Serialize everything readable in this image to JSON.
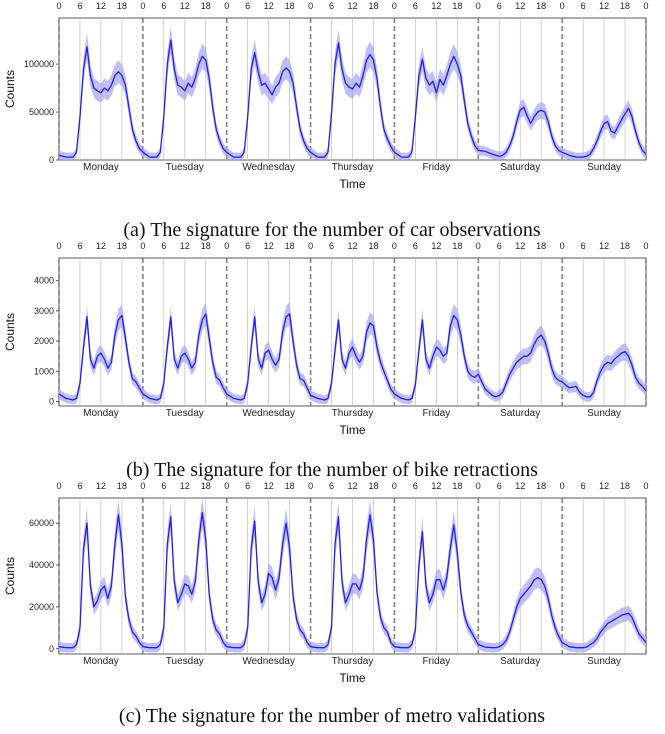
{
  "colors": {
    "line": "#1f1fe6",
    "band": "#a9a9f2",
    "grid": "#bdbdbd",
    "boundary": "#808080"
  },
  "days": [
    "Monday",
    "Tuesday",
    "Wednesday",
    "Thursday",
    "Friday",
    "Saturday",
    "Sunday"
  ],
  "top_hours": [
    "0",
    "6",
    "12",
    "18"
  ],
  "end_hour": "0",
  "xlabel": "Time",
  "ylabel": "Counts",
  "chart_data": [
    {
      "type": "line",
      "caption": "(a) The signature for the number of car observations",
      "xlabel": "Time",
      "ylabel": "Counts",
      "ylim": [
        0,
        148000
      ],
      "yticks": [
        0,
        50000,
        100000
      ],
      "ytick_labels": [
        "0",
        "50000",
        "100000"
      ],
      "x_unit": "hour of week (0–168)",
      "series": [
        {
          "x": [
            0,
            2,
            4,
            5,
            6,
            7,
            8,
            9,
            10,
            11,
            12,
            13,
            14,
            15,
            16,
            17,
            18,
            19,
            20,
            21,
            22,
            23,
            24
          ],
          "weekday_profiles": [
            [
              5000,
              3000,
              3000,
              8000,
              45000,
              95000,
              118000,
              88000,
              75000,
              72000,
              70000,
              75000,
              72000,
              78000,
              88000,
              92000,
              88000,
              78000,
              55000,
              32000,
              20000,
              12000,
              8000
            ],
            [
              5000,
              3000,
              3000,
              8000,
              45000,
              100000,
              125000,
              95000,
              78000,
              76000,
              72000,
              80000,
              76000,
              85000,
              100000,
              108000,
              104000,
              85000,
              55000,
              32000,
              20000,
              12000,
              8000
            ],
            [
              5000,
              3000,
              3000,
              8000,
              45000,
              95000,
              112000,
              92000,
              78000,
              80000,
              74000,
              68000,
              76000,
              80000,
              92000,
              96000,
              92000,
              80000,
              55000,
              32000,
              20000,
              12000,
              8000
            ],
            [
              5000,
              3000,
              3000,
              8000,
              48000,
              100000,
              122000,
              95000,
              80000,
              76000,
              74000,
              80000,
              76000,
              88000,
              104000,
              110000,
              104000,
              85000,
              55000,
              32000,
              22000,
              14000,
              8000
            ],
            [
              5000,
              3000,
              3000,
              8000,
              45000,
              88000,
              105000,
              85000,
              78000,
              82000,
              70000,
              84000,
              78000,
              88000,
              100000,
              108000,
              100000,
              88000,
              62000,
              38000,
              25000,
              15000,
              10000
            ],
            [
              12000,
              9000,
              6000,
              5000,
              4000,
              5000,
              8000,
              15000,
              25000,
              40000,
              52000,
              55000,
              46000,
              38000,
              45000,
              50000,
              52000,
              50000,
              40000,
              25000,
              15000,
              10000,
              8000
            ],
            [
              8000,
              5000,
              3000,
              3000,
              3000,
              4000,
              6000,
              12000,
              20000,
              30000,
              38000,
              40000,
              30000,
              28000,
              35000,
              42000,
              48000,
              54000,
              45000,
              30000,
              18000,
              10000,
              6000
            ]
          ]
        }
      ]
    },
    {
      "type": "line",
      "caption": "(b) The signature for the number of bike retractions",
      "xlabel": "Time",
      "ylabel": "Counts",
      "ylim": [
        -150,
        4750
      ],
      "yticks": [
        0,
        1000,
        2000,
        3000,
        4000
      ],
      "ytick_labels": [
        "0",
        "1000",
        "2000",
        "3000",
        "4000"
      ],
      "x_unit": "hour of week (0–168)",
      "series": [
        {
          "x": [
            0,
            2,
            4,
            5,
            6,
            7,
            8,
            9,
            10,
            11,
            12,
            13,
            14,
            15,
            16,
            17,
            18,
            19,
            20,
            21,
            22,
            23,
            24
          ],
          "weekday_profiles": [
            [
              250,
              100,
              50,
              100,
              600,
              1800,
              2800,
              1400,
              1100,
              1500,
              1600,
              1400,
              1100,
              1300,
              2200,
              2700,
              2850,
              2100,
              1300,
              750,
              650,
              450,
              250
            ],
            [
              250,
              100,
              50,
              100,
              600,
              1800,
              2800,
              1400,
              1100,
              1500,
              1600,
              1400,
              1100,
              1300,
              2200,
              2700,
              2900,
              2100,
              1300,
              800,
              700,
              450,
              250
            ],
            [
              200,
              100,
              50,
              100,
              600,
              1800,
              2800,
              1400,
              1100,
              1600,
              1700,
              1400,
              1200,
              1400,
              2300,
              2800,
              2900,
              2000,
              1200,
              750,
              700,
              450,
              200
            ],
            [
              200,
              100,
              50,
              100,
              600,
              1700,
              2700,
              1400,
              1100,
              1600,
              1800,
              1500,
              1300,
              1500,
              2300,
              2600,
              2500,
              1800,
              1300,
              1000,
              700,
              400,
              250
            ],
            [
              250,
              100,
              50,
              100,
              550,
              1700,
              2700,
              1400,
              1100,
              1500,
              1800,
              1700,
              1500,
              1600,
              2500,
              2850,
              2700,
              2200,
              1500,
              1000,
              850,
              800,
              900
            ],
            [
              750,
              400,
              200,
              150,
              200,
              300,
              600,
              900,
              1100,
              1300,
              1400,
              1500,
              1500,
              1600,
              1900,
              2100,
              2200,
              2000,
              1600,
              1100,
              800,
              700,
              650
            ],
            [
              700,
              450,
              500,
              300,
              200,
              150,
              150,
              300,
              700,
              1000,
              1200,
              1300,
              1250,
              1400,
              1500,
              1600,
              1650,
              1500,
              1200,
              800,
              600,
              500,
              350
            ]
          ]
        }
      ]
    },
    {
      "type": "line",
      "caption": "(c) The signature for the number of metro validations",
      "xlabel": "Time",
      "ylabel": "Counts",
      "ylim": [
        -2500,
        72000
      ],
      "yticks": [
        0,
        20000,
        40000,
        60000
      ],
      "ytick_labels": [
        "0",
        "20000",
        "40000",
        "60000"
      ],
      "x_unit": "hour of week (0–168)",
      "series": [
        {
          "x": [
            0,
            2,
            4,
            5,
            6,
            7,
            8,
            9,
            10,
            11,
            12,
            13,
            14,
            15,
            16,
            17,
            18,
            19,
            20,
            21,
            22,
            23,
            24
          ],
          "weekday_profiles": [
            [
              1000,
              500,
              500,
              2000,
              10000,
              48000,
              60000,
              30000,
              20000,
              23000,
              28000,
              30000,
              24000,
              30000,
              50000,
              64000,
              50000,
              25000,
              14000,
              8000,
              6000,
              3000,
              1000
            ],
            [
              1000,
              500,
              500,
              2000,
              10000,
              50000,
              63000,
              32000,
              22000,
              26000,
              31000,
              30000,
              26000,
              32000,
              52000,
              65000,
              52000,
              26000,
              14000,
              9000,
              7000,
              3000,
              1000
            ],
            [
              1000,
              500,
              500,
              2000,
              10000,
              48000,
              61000,
              32000,
              22000,
              26000,
              36000,
              34000,
              28000,
              34000,
              50000,
              60000,
              48000,
              25000,
              14000,
              9000,
              7000,
              3000,
              1000
            ],
            [
              1000,
              500,
              500,
              2000,
              10000,
              50000,
              63000,
              32000,
              22000,
              26000,
              31000,
              31000,
              28000,
              34000,
              52000,
              64000,
              52000,
              27000,
              15000,
              10000,
              8000,
              3000,
              1000
            ],
            [
              1000,
              500,
              500,
              2000,
              9000,
              40000,
              56000,
              30000,
              22000,
              26000,
              33000,
              33000,
              28000,
              34000,
              48000,
              59000,
              46000,
              27000,
              16000,
              11000,
              8000,
              5000,
              2000
            ],
            [
              1500,
              800,
              500,
              500,
              1000,
              2000,
              4000,
              8000,
              14000,
              20000,
              24000,
              26000,
              28000,
              30000,
              33000,
              34000,
              33000,
              30000,
              24000,
              16000,
              10000,
              6000,
              3000
            ],
            [
              2000,
              1000,
              500,
              500,
              500,
              800,
              2000,
              3000,
              5000,
              8000,
              10000,
              12000,
              13000,
              14000,
              15000,
              16000,
              16500,
              17000,
              15000,
              11000,
              7000,
              5000,
              3000
            ]
          ]
        }
      ]
    }
  ]
}
